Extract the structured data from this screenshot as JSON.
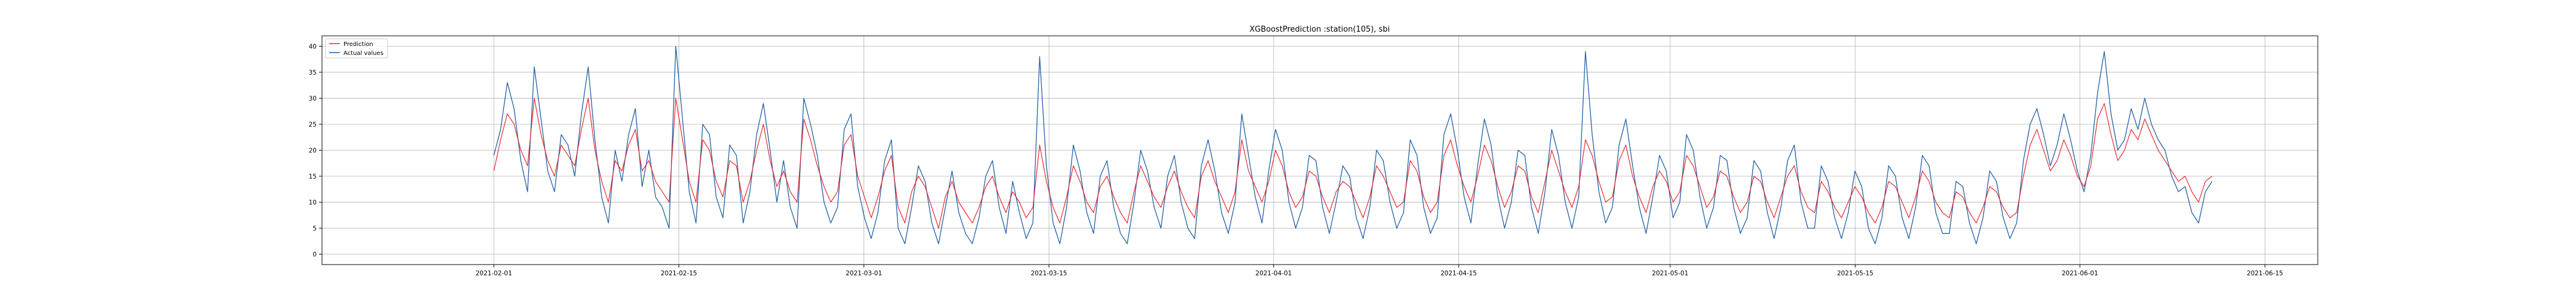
{
  "chart_data": {
    "type": "line",
    "title": "XGBoostPrediction :station(105), sbi",
    "xlabel": "",
    "ylabel": "",
    "xlim": [
      "2021-01-19",
      "2021-06-19"
    ],
    "ylim": [
      -2,
      42
    ],
    "x_ticks": [
      "2021-02-01",
      "2021-02-15",
      "2021-03-01",
      "2021-03-15",
      "2021-04-01",
      "2021-04-15",
      "2021-05-01",
      "2021-05-15",
      "2021-06-01",
      "2021-06-15"
    ],
    "y_ticks": [
      0,
      5,
      10,
      15,
      20,
      25,
      30,
      35,
      40
    ],
    "grid": true,
    "legend_position": "upper-left",
    "x_start": "2021-02-01",
    "x_end": "2021-06-11",
    "series": [
      {
        "name": "Prediction",
        "color": "#e8262b",
        "values": [
          16,
          22,
          27,
          25,
          20,
          17,
          30,
          23,
          18,
          15,
          21,
          19,
          17,
          24,
          30,
          20,
          14,
          10,
          18,
          16,
          21,
          24,
          16,
          18,
          14,
          12,
          10,
          30,
          22,
          14,
          10,
          22,
          20,
          14,
          11,
          18,
          17,
          10,
          14,
          20,
          25,
          18,
          13,
          16,
          12,
          10,
          26,
          22,
          17,
          13,
          10,
          12,
          21,
          23,
          15,
          11,
          7,
          11,
          16,
          19,
          9,
          6,
          12,
          15,
          13,
          9,
          5,
          11,
          14,
          10,
          8,
          6,
          9,
          13,
          15,
          11,
          8,
          12,
          10,
          7,
          9,
          21,
          14,
          9,
          6,
          11,
          17,
          14,
          10,
          8,
          13,
          15,
          11,
          8,
          6,
          12,
          17,
          14,
          11,
          9,
          13,
          16,
          12,
          9,
          7,
          15,
          18,
          14,
          11,
          8,
          12,
          22,
          16,
          13,
          10,
          14,
          20,
          17,
          12,
          9,
          11,
          16,
          15,
          11,
          8,
          12,
          14,
          13,
          10,
          7,
          11,
          17,
          15,
          12,
          9,
          10,
          18,
          16,
          11,
          8,
          10,
          19,
          22,
          17,
          13,
          10,
          15,
          21,
          18,
          13,
          9,
          12,
          17,
          16,
          11,
          8,
          14,
          20,
          16,
          12,
          9,
          13,
          22,
          19,
          14,
          10,
          11,
          18,
          21,
          15,
          11,
          8,
          13,
          16,
          14,
          10,
          12,
          19,
          17,
          13,
          9,
          11,
          16,
          15,
          11,
          8,
          10,
          15,
          14,
          10,
          7,
          11,
          15,
          17,
          12,
          9,
          8,
          14,
          12,
          9,
          7,
          10,
          13,
          11,
          8,
          6,
          9,
          14,
          13,
          10,
          7,
          11,
          16,
          14,
          10,
          8,
          7,
          12,
          11,
          8,
          6,
          9,
          13,
          12,
          9,
          7,
          8,
          15,
          21,
          24,
          20,
          16,
          18,
          22,
          19,
          15,
          13,
          17,
          26,
          29,
          23,
          18,
          20,
          24,
          22,
          26,
          23,
          20,
          18,
          16,
          14,
          15,
          12,
          10,
          14,
          15
        ]
      },
      {
        "name": "Actual values",
        "color": "#1f5fa6",
        "values": [
          19,
          24,
          33,
          28,
          18,
          12,
          36,
          26,
          16,
          12,
          23,
          21,
          15,
          27,
          36,
          22,
          11,
          6,
          20,
          14,
          23,
          28,
          13,
          20,
          11,
          9,
          5,
          40,
          26,
          12,
          6,
          25,
          23,
          11,
          7,
          21,
          19,
          6,
          12,
          23,
          29,
          20,
          10,
          18,
          9,
          5,
          30,
          25,
          19,
          10,
          6,
          9,
          24,
          27,
          13,
          7,
          3,
          8,
          18,
          22,
          5,
          2,
          9,
          17,
          14,
          6,
          2,
          9,
          16,
          8,
          4,
          2,
          7,
          15,
          18,
          9,
          4,
          14,
          8,
          3,
          6,
          38,
          17,
          6,
          2,
          9,
          21,
          16,
          8,
          4,
          15,
          18,
          9,
          4,
          2,
          10,
          20,
          16,
          9,
          5,
          15,
          19,
          10,
          5,
          3,
          17,
          22,
          16,
          8,
          4,
          10,
          27,
          19,
          11,
          6,
          16,
          24,
          20,
          10,
          5,
          9,
          19,
          18,
          9,
          4,
          10,
          17,
          15,
          7,
          3,
          9,
          20,
          18,
          10,
          5,
          8,
          22,
          19,
          9,
          4,
          7,
          23,
          27,
          20,
          11,
          6,
          17,
          26,
          21,
          11,
          5,
          10,
          20,
          19,
          9,
          4,
          12,
          24,
          19,
          10,
          5,
          11,
          39,
          23,
          12,
          6,
          9,
          21,
          26,
          17,
          9,
          4,
          11,
          19,
          16,
          7,
          10,
          23,
          20,
          11,
          5,
          9,
          19,
          18,
          9,
          4,
          7,
          18,
          16,
          8,
          3,
          9,
          18,
          21,
          10,
          5,
          5,
          17,
          14,
          7,
          3,
          8,
          16,
          13,
          5,
          2,
          7,
          17,
          15,
          7,
          3,
          9,
          19,
          17,
          8,
          4,
          4,
          14,
          13,
          6,
          2,
          7,
          16,
          14,
          7,
          3,
          6,
          18,
          25,
          28,
          23,
          17,
          21,
          27,
          22,
          16,
          12,
          19,
          31,
          39,
          27,
          20,
          22,
          28,
          24,
          30,
          25,
          22,
          20,
          15,
          12,
          13,
          8,
          6,
          12,
          14
        ]
      }
    ]
  }
}
